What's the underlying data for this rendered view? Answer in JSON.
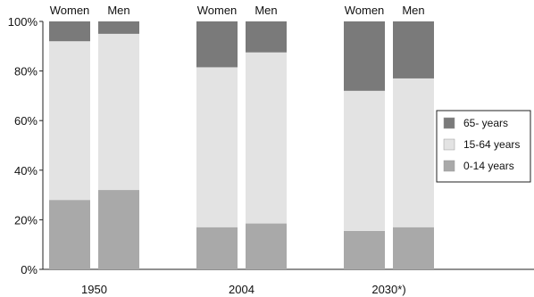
{
  "chart_data": {
    "type": "bar",
    "stacked": true,
    "percent": true,
    "groups": [
      "1950",
      "2004",
      "2030*)"
    ],
    "sexes": [
      "Women",
      "Men"
    ],
    "series": [
      {
        "name": "0-14 years",
        "color": "#a9a9a9",
        "values": [
          28,
          32,
          17,
          18.5,
          15.5,
          17
        ]
      },
      {
        "name": "15-64 years",
        "color": "#e3e3e3",
        "values": [
          64,
          63,
          64.5,
          69,
          56.5,
          60
        ]
      },
      {
        "name": "65- years",
        "color": "#7a7a7a",
        "values": [
          8,
          5,
          18.5,
          12.5,
          28,
          23
        ]
      }
    ],
    "legend_order": [
      "65- years",
      "15-64 years",
      "0-14 years"
    ],
    "ylim": [
      0,
      100
    ],
    "yticks": [
      "0%",
      "20%",
      "40%",
      "60%",
      "80%",
      "100%"
    ],
    "legend_position": "right",
    "grid": false
  }
}
